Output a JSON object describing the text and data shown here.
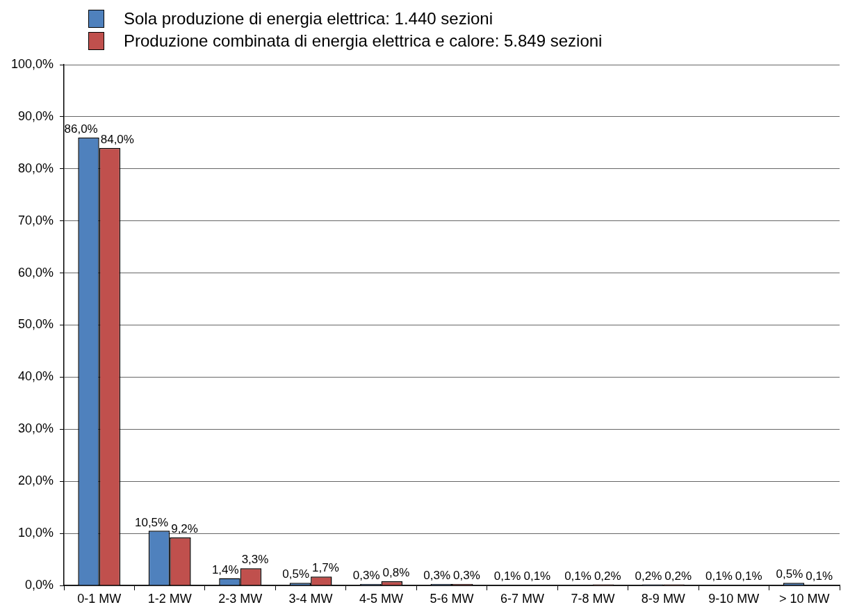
{
  "chart_data": {
    "type": "bar",
    "categories": [
      "0-1 MW",
      "1-2 MW",
      "2-3 MW",
      "3-4 MW",
      "4-5 MW",
      "5-6 MW",
      "6-7 MW",
      "7-8 MW",
      "8-9 MW",
      "9-10 MW",
      "> 10 MW"
    ],
    "series": [
      {
        "name": "Sola produzione di energia elettrica: 1.440 sezioni",
        "color": "#4f81bd",
        "values": [
          86.0,
          10.5,
          1.4,
          0.5,
          0.3,
          0.3,
          0.1,
          0.1,
          0.2,
          0.1,
          0.5
        ],
        "value_labels": [
          "86,0%",
          "10,5%",
          "1,4%",
          "0,5%",
          "0,3%",
          "0,3%",
          "0,1%",
          "0,1%",
          "0,2%",
          "0,1%",
          "0,5%"
        ]
      },
      {
        "name": "Produzione combinata di energia elettrica e calore: 5.849 sezioni",
        "color": "#c0504d",
        "values": [
          84.0,
          9.2,
          3.3,
          1.7,
          0.8,
          0.3,
          0.1,
          0.2,
          0.2,
          0.1,
          0.1
        ],
        "value_labels": [
          "84,0%",
          "9,2%",
          "3,3%",
          "1,7%",
          "0,8%",
          "0,3%",
          "0,1%",
          "0,2%",
          "0,2%",
          "0,1%",
          "0,1%"
        ]
      }
    ],
    "ylim": [
      0,
      100
    ],
    "yticks": [
      {
        "value": 0,
        "label": "0,0%"
      },
      {
        "value": 10,
        "label": "10,0%"
      },
      {
        "value": 20,
        "label": "20,0%"
      },
      {
        "value": 30,
        "label": "30,0%"
      },
      {
        "value": 40,
        "label": "40,0%"
      },
      {
        "value": 50,
        "label": "50,0%"
      },
      {
        "value": 60,
        "label": "60,0%"
      },
      {
        "value": 70,
        "label": "70,0%"
      },
      {
        "value": 80,
        "label": "80,0%"
      },
      {
        "value": 90,
        "label": "90,0%"
      },
      {
        "value": 100,
        "label": "100,0%"
      }
    ],
    "grid": "y",
    "legend": "top left"
  }
}
